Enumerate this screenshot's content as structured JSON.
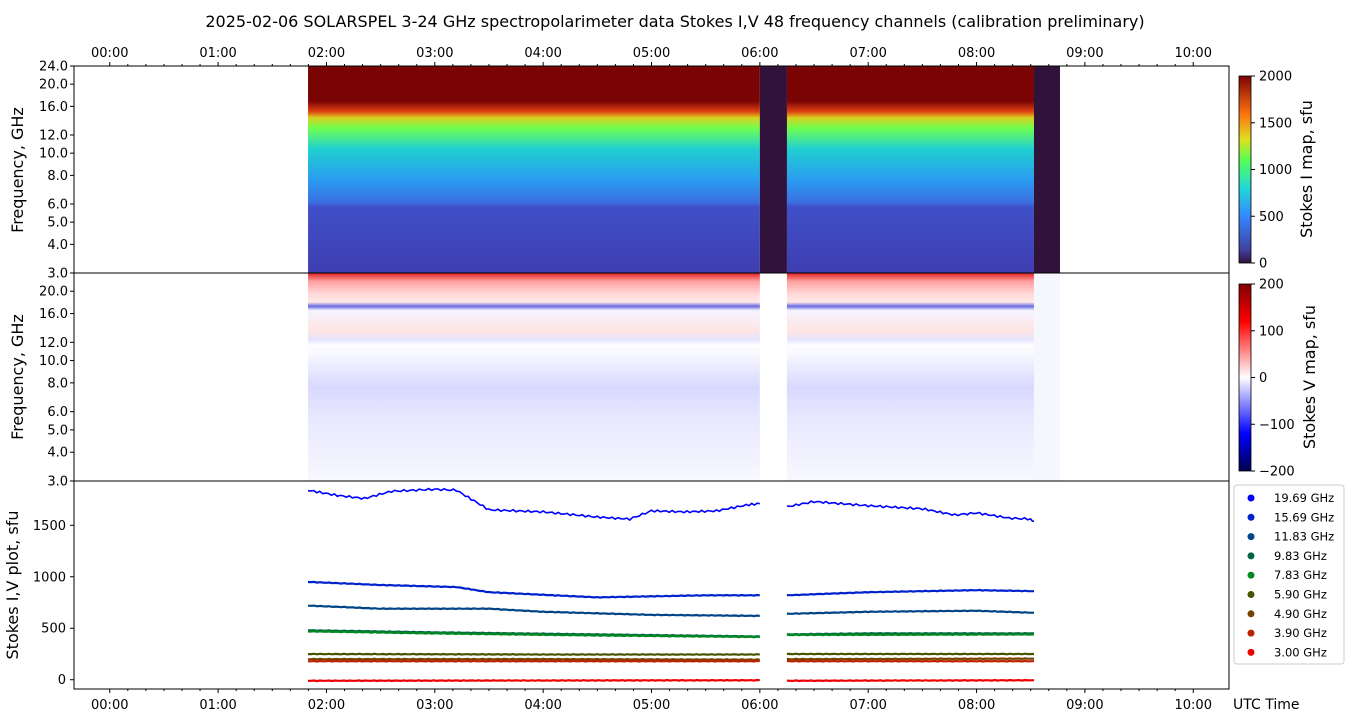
{
  "chart_data": {
    "type": "heatmap",
    "title": "2025-02-06  SOLARSPEL  3-24 GHz spectropolarimeter data   Stokes I,V   48 frequency channels   (calibration preliminary)",
    "time_axis": {
      "label": "UTC Time",
      "range_hours": [
        -0.33,
        10.33
      ],
      "ticks": [
        "00:00",
        "01:00",
        "02:00",
        "03:00",
        "04:00",
        "05:00",
        "06:00",
        "07:00",
        "08:00",
        "09:00",
        "10:00"
      ]
    },
    "observation": {
      "start_hour": 1.83,
      "end_hour": 8.77,
      "gaps": [
        [
          6.0,
          6.25
        ],
        [
          8.53,
          8.77
        ]
      ]
    },
    "panels": {
      "stokes_i": {
        "ylabel": "Frequency, GHz",
        "yticks": [
          "24.0",
          "20.0",
          "16.0",
          "12.0",
          "10.0",
          "8.0",
          "6.0",
          "5.0",
          "4.0",
          "3.0"
        ],
        "colorbar": {
          "label": "Stokes I map, sfu",
          "ticks": [
            "2000",
            "1500",
            "1000",
            "500",
            "0"
          ],
          "range": [
            0,
            2000
          ]
        }
      },
      "stokes_v": {
        "ylabel": "Frequency, GHz",
        "yticks": [
          "20.0",
          "16.0",
          "12.0",
          "10.0",
          "8.0",
          "6.0",
          "5.0",
          "4.0",
          "3.0"
        ],
        "colorbar": {
          "label": "Stokes V map, sfu",
          "ticks": [
            "200",
            "100",
            "0",
            "−100",
            "−200"
          ],
          "range": [
            -200,
            200
          ]
        }
      },
      "plot": {
        "ylabel": "Stokes I,V plot, sfu",
        "yticks": [
          "1500",
          "1000",
          "500",
          "0"
        ],
        "ylim": [
          -90,
          1930
        ]
      }
    },
    "series": [
      {
        "name": "19.69 GHz",
        "color": "#0000ff",
        "values": [
          [
            1.83,
            1840
          ],
          [
            2.1,
            1790
          ],
          [
            2.35,
            1760
          ],
          [
            2.6,
            1830
          ],
          [
            3.0,
            1850
          ],
          [
            3.2,
            1840
          ],
          [
            3.5,
            1650
          ],
          [
            4.0,
            1630
          ],
          [
            4.5,
            1580
          ],
          [
            4.8,
            1560
          ],
          [
            5.0,
            1640
          ],
          [
            5.3,
            1630
          ],
          [
            5.6,
            1640
          ],
          [
            5.9,
            1700
          ],
          [
            6.0,
            1710
          ],
          [
            6.25,
            1680
          ],
          [
            6.5,
            1730
          ],
          [
            7.0,
            1690
          ],
          [
            7.5,
            1660
          ],
          [
            7.8,
            1600
          ],
          [
            8.0,
            1620
          ],
          [
            8.3,
            1570
          ],
          [
            8.5,
            1560
          ],
          [
            8.53,
            1540
          ]
        ]
      },
      {
        "name": "15.69 GHz",
        "color": "#0022cc",
        "values": [
          [
            1.83,
            950
          ],
          [
            2.5,
            920
          ],
          [
            3.2,
            900
          ],
          [
            3.5,
            850
          ],
          [
            4.5,
            800
          ],
          [
            5.5,
            820
          ],
          [
            6.0,
            820
          ],
          [
            6.25,
            820
          ],
          [
            7.0,
            850
          ],
          [
            8.0,
            870
          ],
          [
            8.53,
            860
          ]
        ]
      },
      {
        "name": "11.83 GHz",
        "color": "#004488",
        "values": [
          [
            1.83,
            720
          ],
          [
            2.5,
            690
          ],
          [
            3.5,
            690
          ],
          [
            4.0,
            660
          ],
          [
            5.0,
            630
          ],
          [
            6.0,
            620
          ],
          [
            6.25,
            640
          ],
          [
            7.0,
            660
          ],
          [
            8.0,
            670
          ],
          [
            8.53,
            650
          ]
        ]
      },
      {
        "name": "9.83 GHz",
        "color": "#006644",
        "values": [
          [
            1.83,
            480
          ],
          [
            3.0,
            460
          ],
          [
            4.5,
            440
          ],
          [
            6.0,
            420
          ],
          [
            6.25,
            440
          ],
          [
            7.0,
            450
          ],
          [
            8.53,
            450
          ]
        ]
      },
      {
        "name": "7.83 GHz",
        "color": "#008822",
        "values": [
          [
            1.83,
            470
          ],
          [
            3.0,
            450
          ],
          [
            4.5,
            430
          ],
          [
            6.0,
            415
          ],
          [
            6.25,
            435
          ],
          [
            8.53,
            440
          ]
        ]
      },
      {
        "name": "5.90 GHz",
        "color": "#445500",
        "values": [
          [
            1.83,
            250
          ],
          [
            4.0,
            245
          ],
          [
            6.0,
            245
          ],
          [
            6.25,
            250
          ],
          [
            8.53,
            250
          ]
        ]
      },
      {
        "name": "4.90 GHz",
        "color": "#774400",
        "values": [
          [
            1.83,
            200
          ],
          [
            4.0,
            200
          ],
          [
            6.0,
            195
          ],
          [
            6.25,
            200
          ],
          [
            8.53,
            205
          ]
        ]
      },
      {
        "name": "3.90 GHz",
        "color": "#bb2200",
        "values": [
          [
            1.83,
            180
          ],
          [
            4.0,
            180
          ],
          [
            6.0,
            180
          ],
          [
            6.25,
            180
          ],
          [
            8.53,
            180
          ]
        ]
      },
      {
        "name": "3.00 GHz",
        "color": "#ee0000",
        "values": [
          [
            1.83,
            -10
          ],
          [
            6.0,
            -5
          ],
          [
            6.25,
            -10
          ],
          [
            8.53,
            -5
          ]
        ]
      }
    ],
    "legend_position": "right"
  }
}
